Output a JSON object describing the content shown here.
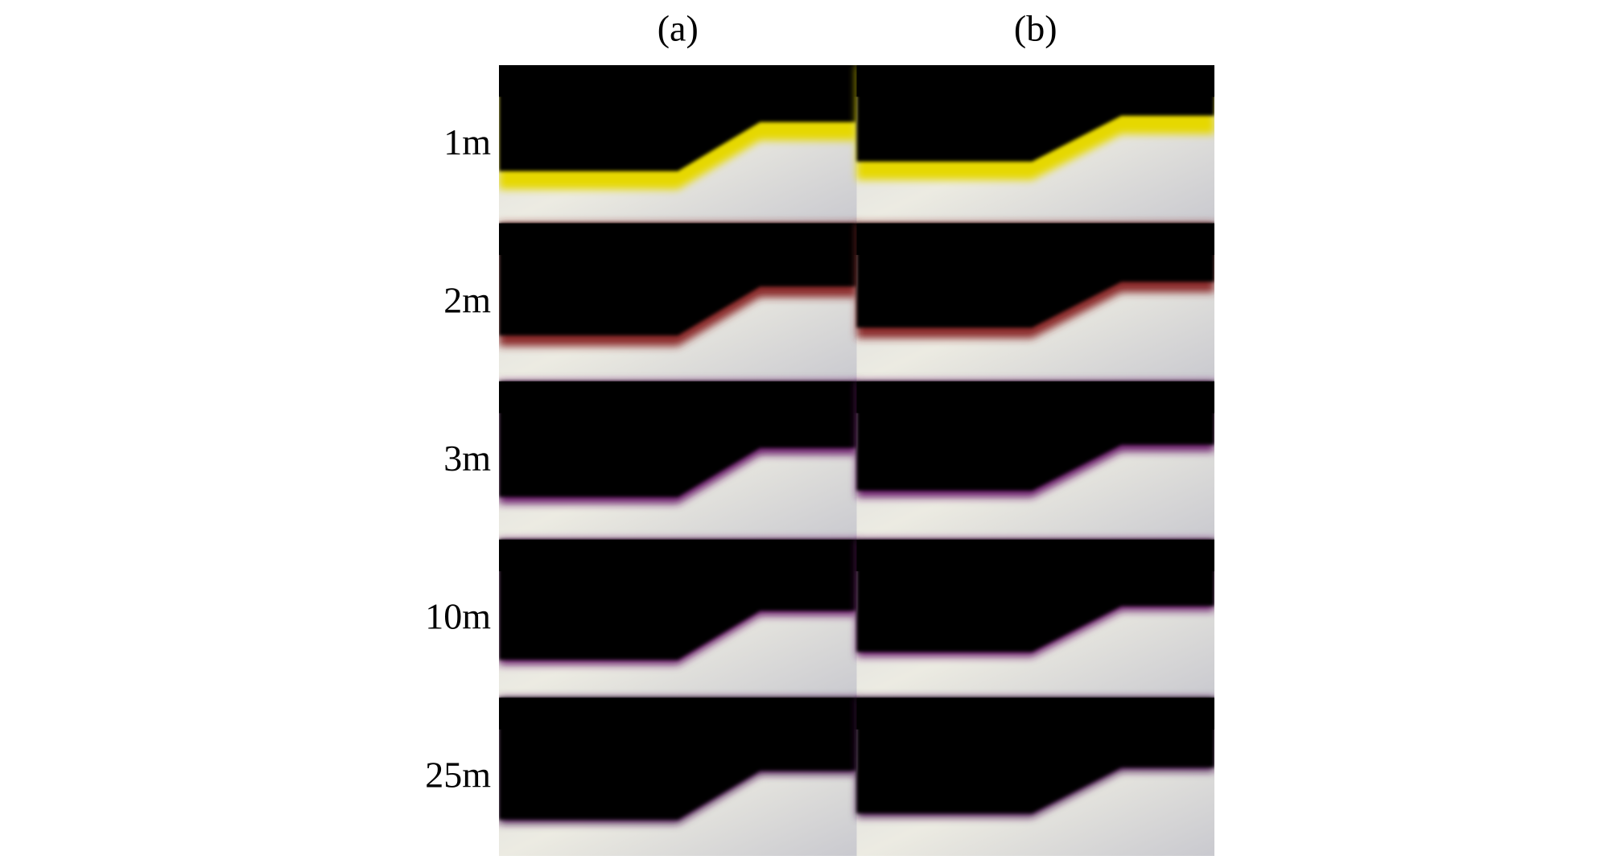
{
  "column_labels": [
    "(a)",
    "(b)"
  ],
  "row_labels": [
    "1m",
    "2m",
    "3m",
    "10m",
    "25m"
  ]
}
